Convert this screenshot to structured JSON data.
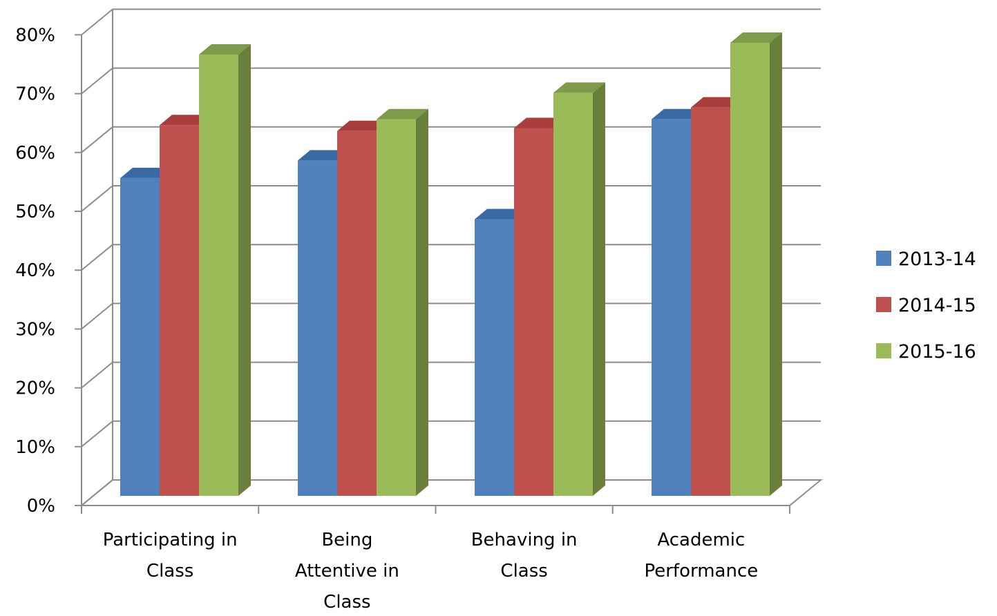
{
  "chart_data": {
    "type": "bar",
    "style": "3d-clustered-column",
    "title": "",
    "xlabel": "",
    "ylabel": "",
    "ylim": [
      0,
      80
    ],
    "yticks": [
      {
        "value": 0,
        "label": "0%"
      },
      {
        "value": 10,
        "label": "10%"
      },
      {
        "value": 20,
        "label": "20%"
      },
      {
        "value": 30,
        "label": "30%"
      },
      {
        "value": 40,
        "label": "40%"
      },
      {
        "value": 50,
        "label": "50%"
      },
      {
        "value": 60,
        "label": "60%"
      },
      {
        "value": 70,
        "label": "70%"
      },
      {
        "value": 80,
        "label": "80%"
      }
    ],
    "grid": true,
    "legend_position": "right",
    "categories": [
      [
        "Participating in",
        "Class"
      ],
      [
        "Being",
        "Attentive in",
        "Class"
      ],
      [
        "Behaving in",
        "Class"
      ],
      [
        "Academic",
        "Performance"
      ]
    ],
    "series": [
      {
        "name": "2013-14",
        "color": "#4f81bd",
        "top_color": "#3a6aa6",
        "side_color": "#385d8a",
        "values": [
          54,
          57,
          47,
          64
        ]
      },
      {
        "name": "2014-15",
        "color": "#c0504d",
        "top_color": "#a83e3b",
        "side_color": "#8c3836",
        "values": [
          63,
          62,
          62.5,
          66
        ]
      },
      {
        "name": "2015-16",
        "color": "#9bbb59",
        "top_color": "#7f9a48",
        "side_color": "#6b7f3c",
        "values": [
          75,
          64,
          68.5,
          77
        ]
      }
    ]
  }
}
